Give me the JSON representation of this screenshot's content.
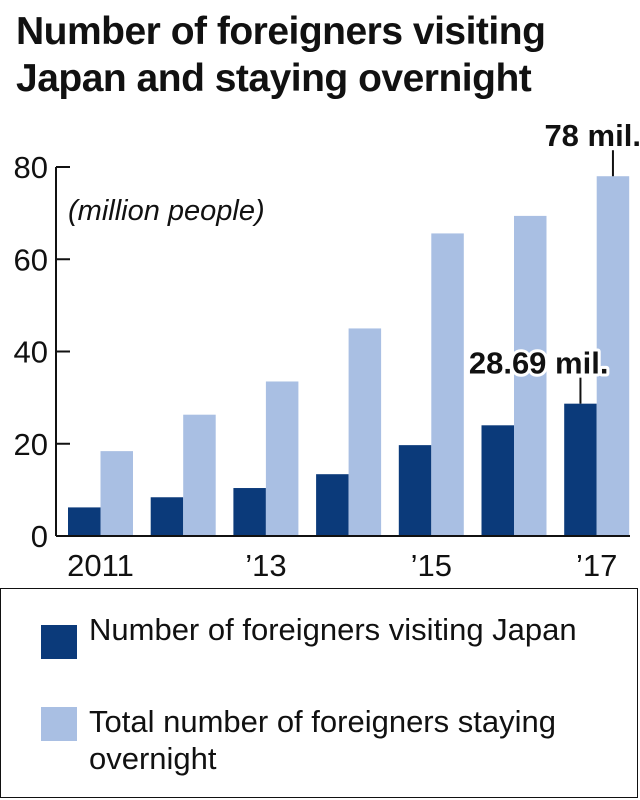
{
  "title": "Number of foreigners visiting Japan and staying overnight",
  "chart_data": {
    "type": "bar",
    "unit_label": "(million people)",
    "categories": [
      "2011",
      "2012",
      "2013",
      "2014",
      "2015",
      "2016",
      "2017"
    ],
    "tick_labels": [
      "2011",
      "",
      "’13",
      "",
      "’15",
      "",
      "’17"
    ],
    "ylim": [
      0,
      80
    ],
    "yticks": [
      0,
      20,
      40,
      60,
      80
    ],
    "grid": false,
    "legend_position": "bottom",
    "series": [
      {
        "name": "Number of foreigners visiting Japan",
        "color": "#0b3a7a",
        "values": [
          6.2,
          8.4,
          10.4,
          13.4,
          19.7,
          24.0,
          28.69
        ]
      },
      {
        "name": "Total number of foreigners staying overnight",
        "color": "#a9bfe3",
        "values": [
          18.4,
          26.3,
          33.5,
          45.0,
          65.6,
          69.4,
          78
        ]
      }
    ],
    "annotations": [
      {
        "text": "78 mil.",
        "series": 1,
        "category": "2017"
      },
      {
        "text": "28.69 mil.",
        "series": 0,
        "category": "2017"
      }
    ]
  },
  "legend": {
    "items": [
      {
        "label": "Number of foreigners visiting Japan",
        "color": "#0b3a7a"
      },
      {
        "label": "Total number of foreigners staying overnight",
        "color": "#a9bfe3"
      }
    ]
  }
}
